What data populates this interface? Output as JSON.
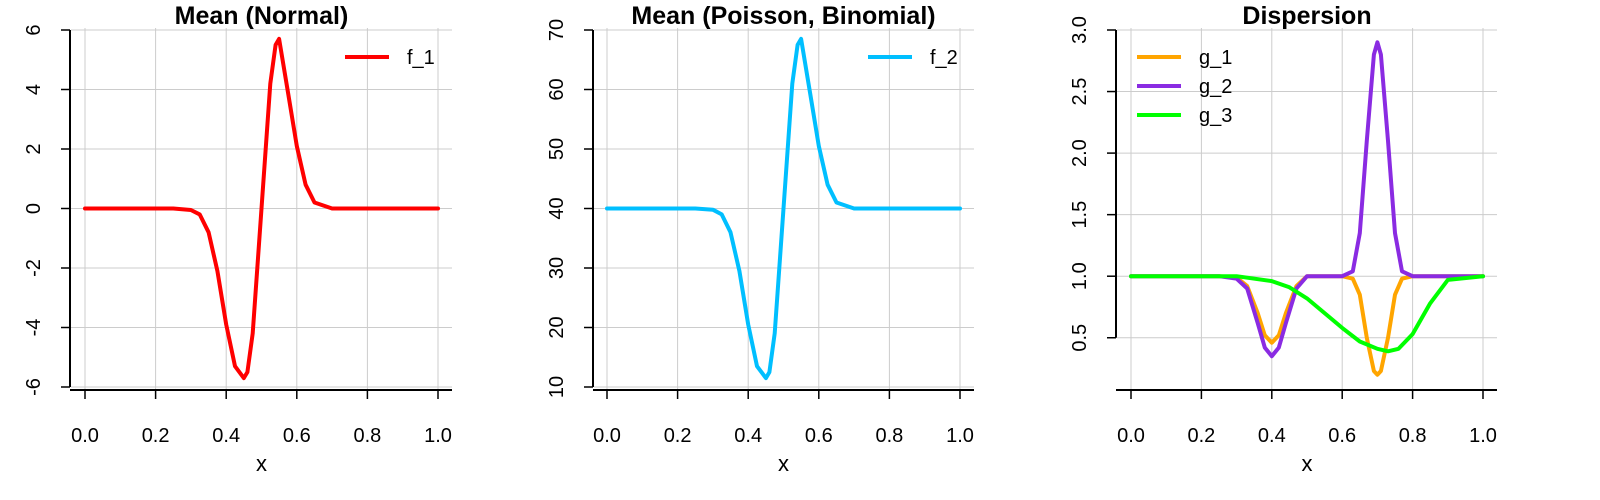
{
  "chart_data": [
    {
      "type": "line",
      "title": "Mean (Normal)",
      "xlabel": "x",
      "ylabel": "",
      "xlim": [
        0,
        1
      ],
      "ylim": [
        -6,
        6
      ],
      "x_ticks": [
        "0.0",
        "0.2",
        "0.4",
        "0.6",
        "0.8",
        "1.0"
      ],
      "y_ticks": [
        "-6",
        "-4",
        "-2",
        "0",
        "2",
        "4",
        "6"
      ],
      "grid": true,
      "legend_position": "top-right",
      "series": [
        {
          "name": "f_1",
          "color": "#ff0000",
          "x": [
            0,
            0.25,
            0.3,
            0.325,
            0.35,
            0.375,
            0.4,
            0.425,
            0.45,
            0.46,
            0.475,
            0.5,
            0.525,
            0.54,
            0.55,
            0.575,
            0.6,
            0.625,
            0.65,
            0.7,
            0.75,
            1.0
          ],
          "y": [
            0,
            0,
            -0.05,
            -0.2,
            -0.8,
            -2.1,
            -3.9,
            -5.3,
            -5.7,
            -5.5,
            -4.2,
            0,
            4.2,
            5.5,
            5.7,
            3.9,
            2.1,
            0.8,
            0.2,
            0,
            0,
            0
          ]
        }
      ]
    },
    {
      "type": "line",
      "title": "Mean (Poisson, Binomial)",
      "xlabel": "x",
      "ylabel": "",
      "xlim": [
        0,
        1
      ],
      "ylim": [
        10,
        70
      ],
      "x_ticks": [
        "0.0",
        "0.2",
        "0.4",
        "0.6",
        "0.8",
        "1.0"
      ],
      "y_ticks": [
        "10",
        "20",
        "30",
        "40",
        "50",
        "60",
        "70"
      ],
      "grid": true,
      "legend_position": "top-right",
      "series": [
        {
          "name": "f_2",
          "color": "#00bfff",
          "x": [
            0,
            0.25,
            0.3,
            0.325,
            0.35,
            0.375,
            0.4,
            0.425,
            0.45,
            0.46,
            0.475,
            0.5,
            0.525,
            0.54,
            0.55,
            0.575,
            0.6,
            0.625,
            0.65,
            0.7,
            0.75,
            1.0
          ],
          "y": [
            40,
            40,
            39.8,
            39,
            36,
            29.5,
            20.5,
            13.5,
            11.5,
            12.5,
            19,
            40,
            61,
            67.5,
            68.5,
            59.5,
            50.5,
            44,
            41,
            40,
            40,
            40
          ]
        }
      ]
    },
    {
      "type": "line",
      "title": "Dispersion",
      "xlabel": "x",
      "ylabel": "",
      "xlim": [
        0,
        1
      ],
      "ylim": [
        0.1,
        3.0
      ],
      "x_ticks": [
        "0.0",
        "0.2",
        "0.4",
        "0.6",
        "0.8",
        "1.0"
      ],
      "y_ticks": [
        "0.5",
        "1.0",
        "1.5",
        "2.0",
        "2.5",
        "3.0"
      ],
      "grid": true,
      "legend_position": "top-left",
      "series": [
        {
          "name": "g_1",
          "color": "#ffa500",
          "x": [
            0,
            0.25,
            0.3,
            0.33,
            0.36,
            0.38,
            0.4,
            0.42,
            0.44,
            0.47,
            0.5,
            0.6,
            0.63,
            0.65,
            0.67,
            0.69,
            0.7,
            0.71,
            0.73,
            0.75,
            0.77,
            0.8,
            1.0
          ],
          "y": [
            1,
            1,
            0.99,
            0.92,
            0.7,
            0.52,
            0.46,
            0.52,
            0.7,
            0.92,
            1,
            1,
            0.98,
            0.85,
            0.5,
            0.23,
            0.2,
            0.23,
            0.5,
            0.85,
            0.98,
            1,
            1
          ]
        },
        {
          "name": "g_2",
          "color": "#8a2be2",
          "x": [
            0,
            0.25,
            0.3,
            0.33,
            0.36,
            0.38,
            0.4,
            0.42,
            0.44,
            0.47,
            0.5,
            0.6,
            0.63,
            0.65,
            0.67,
            0.69,
            0.7,
            0.71,
            0.73,
            0.75,
            0.77,
            0.8,
            1.0
          ],
          "y": [
            1,
            1,
            0.98,
            0.9,
            0.62,
            0.42,
            0.35,
            0.42,
            0.62,
            0.9,
            1,
            1,
            1.04,
            1.35,
            2.1,
            2.8,
            2.9,
            2.8,
            2.1,
            1.35,
            1.04,
            1,
            1
          ]
        },
        {
          "name": "g_3",
          "color": "#00ff00",
          "x": [
            0,
            0.3,
            0.4,
            0.45,
            0.5,
            0.55,
            0.6,
            0.65,
            0.7,
            0.73,
            0.76,
            0.8,
            0.85,
            0.9,
            1.0
          ],
          "y": [
            1,
            1,
            0.96,
            0.91,
            0.82,
            0.7,
            0.58,
            0.47,
            0.41,
            0.39,
            0.41,
            0.53,
            0.78,
            0.97,
            1
          ]
        }
      ]
    }
  ]
}
